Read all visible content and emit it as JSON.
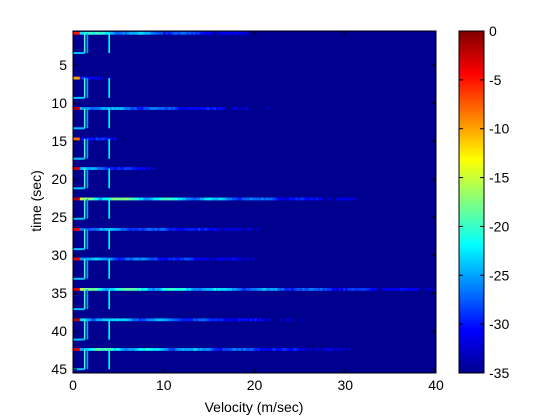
{
  "chart_data": {
    "type": "heatmap",
    "title": "",
    "xlabel": "Velocity (m/sec)",
    "ylabel": "time (sec)",
    "xlim": [
      0,
      40
    ],
    "ylim": [
      0.5,
      45.5
    ],
    "y_reversed": true,
    "x_ticks": [
      "0",
      "10",
      "20",
      "30",
      "40"
    ],
    "y_ticks": [
      "5",
      "10",
      "15",
      "20",
      "25",
      "30",
      "35",
      "40",
      "45"
    ],
    "colormap": "jet",
    "background_color": "#00008f",
    "colorbar": {
      "range": [
        -35,
        0
      ],
      "ticks": [
        "0",
        "-5",
        "-10",
        "-15",
        "-20",
        "-25",
        "-30",
        "-35"
      ]
    },
    "bands": [
      {
        "time": 0.8,
        "peak": -5,
        "extent": 20,
        "strength": 0.55
      },
      {
        "time": 6.7,
        "peak": -10,
        "extent": 5,
        "strength": 0.3
      },
      {
        "time": 10.7,
        "peak": -2,
        "extent": 22,
        "strength": 0.4
      },
      {
        "time": 14.7,
        "peak": -8,
        "extent": 8,
        "strength": 0.3
      },
      {
        "time": 18.6,
        "peak": -3,
        "extent": 10,
        "strength": 0.4
      },
      {
        "time": 22.6,
        "peak": -2,
        "extent": 30,
        "strength": 0.65
      },
      {
        "time": 26.6,
        "peak": -4,
        "extent": 22,
        "strength": 0.4
      },
      {
        "time": 30.5,
        "peak": -4,
        "extent": 22,
        "strength": 0.4
      },
      {
        "time": 34.5,
        "peak": -3,
        "extent": 40,
        "strength": 0.6
      },
      {
        "time": 38.5,
        "peak": -2,
        "extent": 25,
        "strength": 0.45
      },
      {
        "time": 42.4,
        "peak": -3,
        "extent": 30,
        "strength": 0.55
      }
    ]
  }
}
